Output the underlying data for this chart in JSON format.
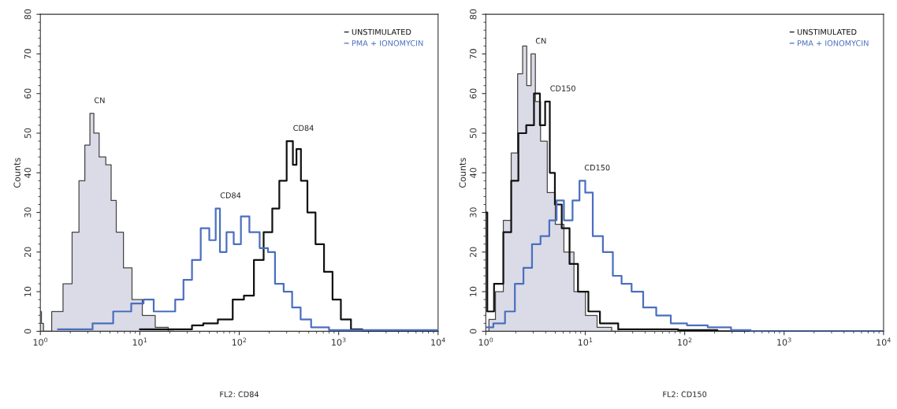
{
  "chart_data": [
    {
      "type": "step",
      "xlabel": "FL2: CD84",
      "ylabel": "Counts",
      "log": "x",
      "xlim": [
        1,
        10000
      ],
      "ylim": [
        0,
        80
      ],
      "xticks": [
        {
          "value": 1,
          "label": "10$^{0}$"
        },
        {
          "value": 10,
          "label": "10$^{1}$"
        },
        {
          "value": 100,
          "label": "10$^{2}$"
        },
        {
          "value": 1000,
          "label": "10$^{3}$"
        },
        {
          "value": 10000,
          "label": "10$^{4}$"
        }
      ],
      "yticks": [
        0,
        10,
        20,
        30,
        40,
        50,
        60,
        70,
        80
      ],
      "grid": false,
      "legend": "top right",
      "series": [
        {
          "type": "area",
          "color": "#dadbe6",
          "x": [
            1,
            1.05,
            1.1,
            1.5,
            1.88,
            2.29,
            2.6,
            3.0,
            3.3,
            3.6,
            4.2,
            4.9,
            5.4,
            6.2,
            7.5,
            9.2,
            12,
            16.6,
            22
          ],
          "values": [
            5,
            2,
            0,
            5,
            12,
            25,
            38,
            47,
            55,
            50,
            44,
            42,
            33,
            25,
            16,
            8,
            4,
            1,
            0
          ]
        },
        {
          "name": "UNSTIMULATED",
          "color": "#111111",
          "x": [
            10,
            20,
            30,
            37,
            50,
            72,
            100,
            123,
            158,
            194,
            236,
            270,
            330,
            363,
            390,
            445,
            525,
            645,
            780,
            955,
            1150,
            1510,
            1950,
            10000
          ],
          "values": [
            0.5,
            0.5,
            0.5,
            1.5,
            2,
            3,
            8,
            9,
            18,
            25,
            31,
            38,
            48,
            42,
            46,
            38,
            30,
            22,
            15,
            8,
            3,
            0.5,
            0,
            0
          ]
        },
        {
          "name": "PMA + IONOMYCIN",
          "color": "#4a6fbf",
          "x": [
            1.5,
            2.5,
            4.2,
            6.6,
            9.8,
            12,
            15.6,
            20.4,
            25,
            30,
            37,
            45,
            55,
            61,
            67,
            82,
            94,
            114,
            139,
            182,
            207,
            251,
            309,
            372,
            457,
            600,
            1000,
            7400,
            10000
          ],
          "values": [
            0.5,
            0.5,
            2,
            5,
            7,
            8,
            5,
            5,
            8,
            13,
            18,
            26,
            23,
            31,
            20,
            25,
            22,
            29,
            25,
            21,
            20,
            12,
            10,
            6,
            3,
            1,
            0.3,
            0.3,
            0.3
          ]
        }
      ],
      "annotations": [
        {
          "text": "CN",
          "x": 3.3,
          "y": 55
        },
        {
          "text": "CD84",
          "x": 61,
          "y": 31
        },
        {
          "text": "CD84",
          "x": 330,
          "y": 48
        }
      ]
    },
    {
      "type": "step",
      "xlabel": "FL2: CD150",
      "ylabel": "Counts",
      "log": "x",
      "xlim": [
        1,
        10000
      ],
      "ylim": [
        0,
        80
      ],
      "xticks": [
        {
          "value": 1,
          "label": "10$^{0}$"
        },
        {
          "value": 10,
          "label": "10$^{1}$"
        },
        {
          "value": 100,
          "label": "10$^{2}$"
        },
        {
          "value": 1000,
          "label": "10$^{3}$"
        },
        {
          "value": 10000,
          "label": "10$^{4}$"
        }
      ],
      "yticks": [
        0,
        10,
        20,
        30,
        40,
        50,
        60,
        70,
        80
      ],
      "grid": false,
      "legend": "top right",
      "series": [
        {
          "type": "area",
          "color": "#dadbe6",
          "x": [
            1,
            1.15,
            1.35,
            1.65,
            1.95,
            2.23,
            2.46,
            2.7,
            3.0,
            3.3,
            3.8,
            4.5,
            5.5,
            6.7,
            8.7,
            11.4,
            14.9,
            22
          ],
          "values": [
            0,
            3,
            10,
            28,
            45,
            65,
            72,
            62,
            70,
            58,
            48,
            35,
            27,
            20,
            10,
            4,
            1,
            0
          ]
        },
        {
          "name": "UNSTIMULATED",
          "color": "#111111",
          "x": [
            1,
            1.07,
            1.35,
            1.65,
            1.95,
            2.3,
            2.8,
            3.3,
            3.7,
            4.2,
            4.6,
            5.3,
            6.3,
            7.6,
            9.3,
            12.2,
            15.9,
            27,
            145,
            282,
            10000
          ],
          "values": [
            30,
            5,
            12,
            25,
            38,
            50,
            52,
            60,
            52,
            58,
            40,
            32,
            26,
            17,
            10,
            5,
            2,
            0.5,
            0.3,
            0,
            0
          ]
        },
        {
          "name": "PMA + IONOMYCIN",
          "color": "#4a6fbf",
          "x": [
            1.03,
            1.35,
            1.77,
            2.15,
            2.63,
            3.2,
            3.9,
            4.8,
            5.5,
            6.7,
            8.2,
            9.3,
            10.7,
            13.1,
            17,
            20.9,
            25.5,
            33,
            43.5,
            60,
            85,
            126,
            215,
            370,
            550,
            10000
          ],
          "values": [
            1,
            2,
            5,
            12,
            16,
            22,
            24,
            28,
            33,
            28,
            33,
            38,
            35,
            24,
            20,
            14,
            12,
            10,
            6,
            4,
            2,
            1.5,
            1,
            0.3,
            0,
            0
          ]
        }
      ],
      "annotations": [
        {
          "text": "CN",
          "x": 3.0,
          "y": 70
        },
        {
          "text": "CD150",
          "x": 4.2,
          "y": 58
        },
        {
          "text": "CD150",
          "x": 9.3,
          "y": 38
        }
      ]
    }
  ]
}
